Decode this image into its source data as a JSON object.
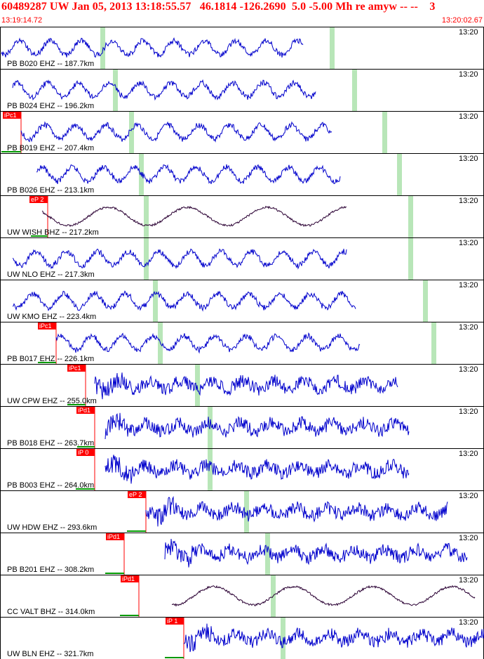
{
  "header": {
    "title": "60489287 UW Jan 05, 2013 13:18:55.57   46.1814 -126.2690  5.0 -5.00 Mh re amyw -- --    3",
    "time_start": "13:19:14.72",
    "time_end": "13:20:02.67"
  },
  "colors": {
    "title_red": "#ff0000",
    "trace_blue": "#0000cc",
    "trace_dark": "#330022",
    "trace_dark_purple": "#2a0033",
    "pick_red": "#ff0000",
    "green_marker": "#b8e6b8",
    "row_border": "#000000",
    "onset_green": "#009900"
  },
  "rows": [
    {
      "label": "PB B020 EHZ -- 187.7km",
      "time": "13:20",
      "color": "blue",
      "pick": null
    },
    {
      "label": "PB B024 EHZ -- 196.2km",
      "time": "13:20",
      "color": "blue",
      "pick": null
    },
    {
      "label": "PB B019 EHZ -- 207.4km",
      "time": "13:20",
      "color": "blue",
      "pick": "iPc1"
    },
    {
      "label": "PB B026 EHZ -- 213.1km",
      "time": "13:20",
      "color": "blue",
      "pick": null
    },
    {
      "label": "UW WISH BHZ -- 217.2km",
      "time": "13:20",
      "color": "dark",
      "pick": "eP 2"
    },
    {
      "label": "UW NLO EHZ -- 217.3km",
      "time": "13:20",
      "color": "blue",
      "pick": null
    },
    {
      "label": "UW KMO EHZ -- 223.4km",
      "time": "13:20",
      "color": "blue",
      "pick": null
    },
    {
      "label": "PB B017 EHZ -- 226.1km",
      "time": "13:20",
      "color": "blue",
      "pick": "iPc1"
    },
    {
      "label": "UW CPW EHZ -- 255.0km",
      "time": "13:20",
      "color": "blue",
      "pick": "iPc1"
    },
    {
      "label": "PB B018 EHZ -- 263.7km",
      "time": "13:20",
      "color": "blue",
      "pick": "iPd1"
    },
    {
      "label": "PB B003 EHZ -- 264.0km",
      "time": "13:20",
      "color": "blue",
      "pick": "iP 0"
    },
    {
      "label": "UW HDW EHZ -- 293.6km",
      "time": "13:20",
      "color": "blue",
      "pick": "eP 2"
    },
    {
      "label": "PB B201 EHZ -- 308.2km",
      "time": "13:20",
      "color": "blue",
      "pick": "iPd1"
    },
    {
      "label": "CC VALT BHZ -- 314.0km",
      "time": "13:20",
      "color": "dark",
      "pick": "iPd1"
    },
    {
      "label": "UW BLN EHZ -- 321.7km",
      "time": "13:20",
      "color": "blue",
      "pick": "iP 1"
    }
  ]
}
